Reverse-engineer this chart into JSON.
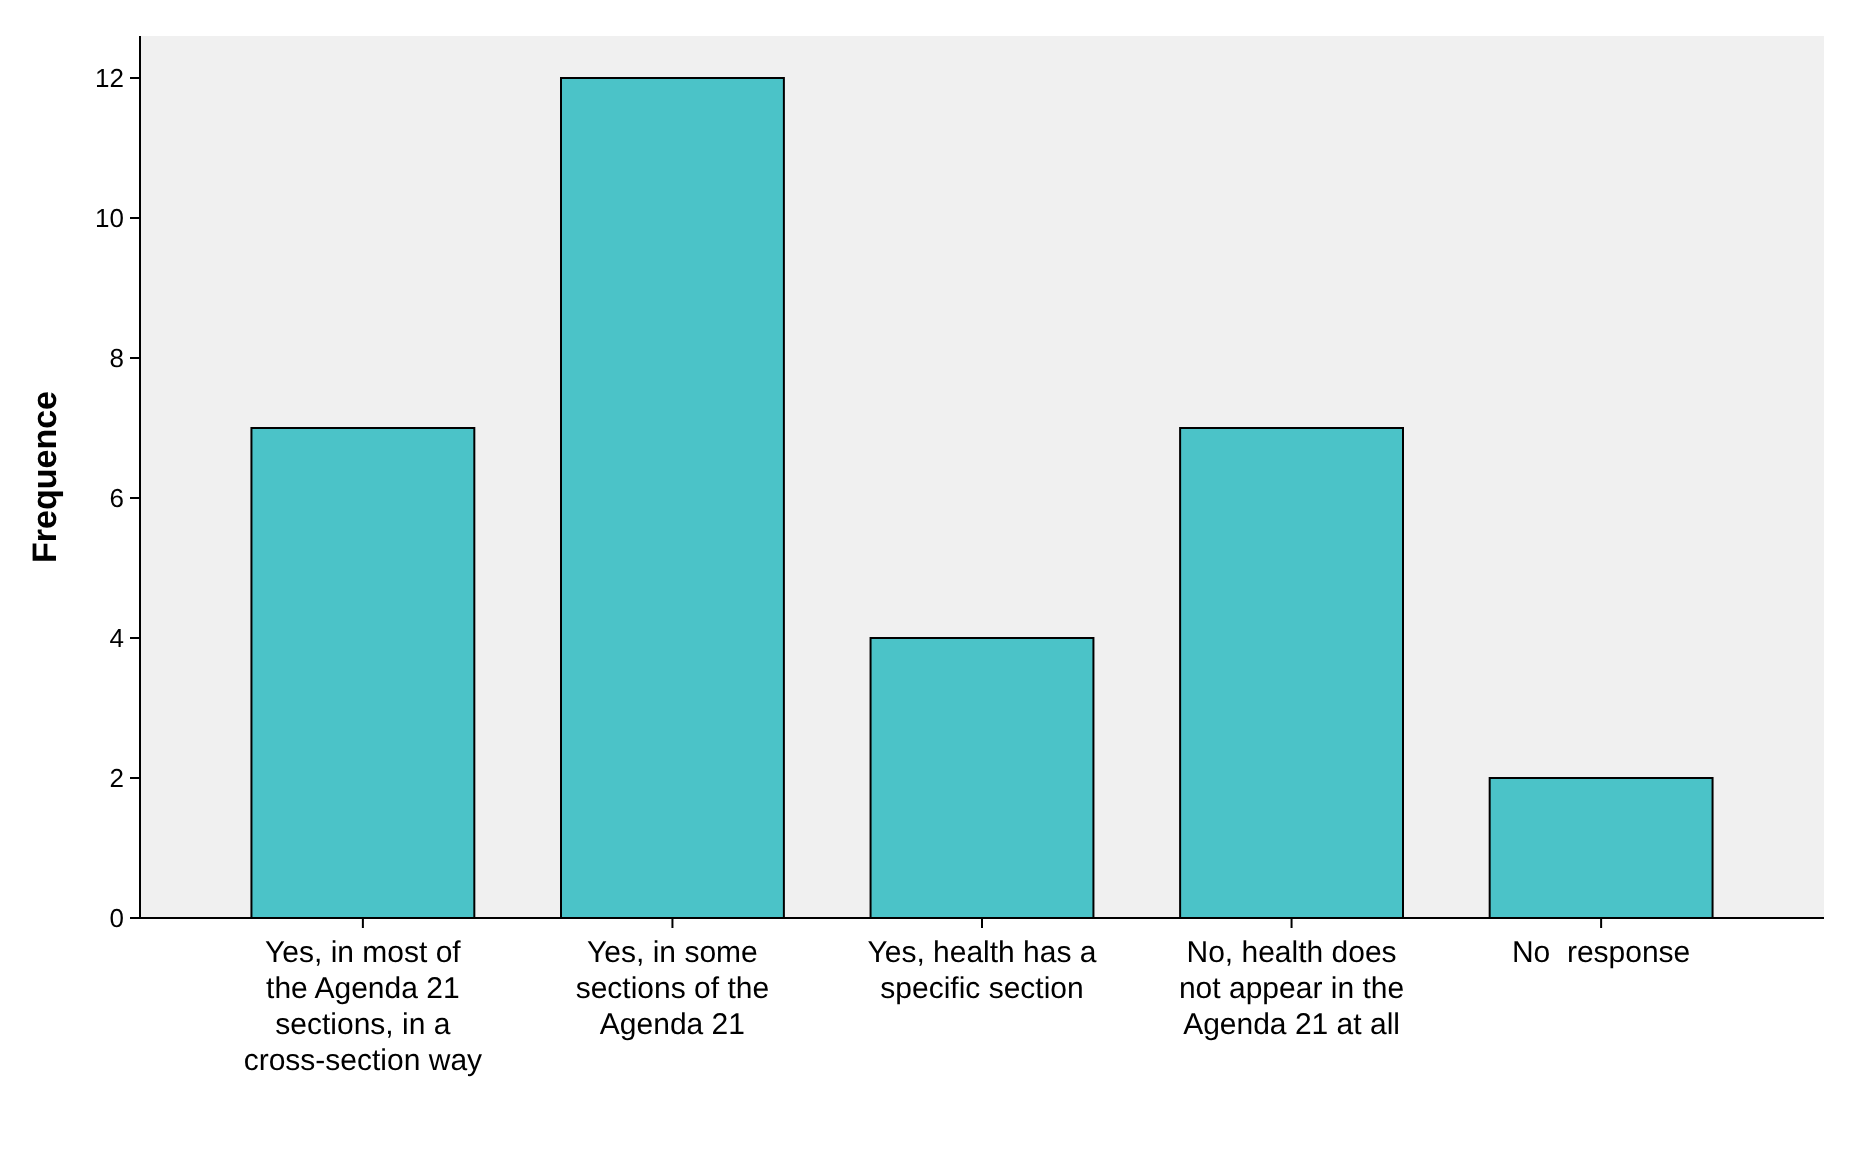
{
  "chart_data": {
    "type": "bar",
    "ylabel": "Frequence",
    "categories": [
      "Yes, in most of the Agenda 21 sections, in a cross-section way",
      "Yes, in some sections of the Agenda 21",
      "Yes, health has a specific section",
      "No, health does not appear in the Agenda 21 at all",
      "No  response"
    ],
    "values": [
      7,
      12,
      4,
      7,
      2
    ],
    "color": "#4bc3c8",
    "ylim": [
      0,
      12.6
    ],
    "yticks": [
      0,
      2,
      4,
      6,
      8,
      10,
      12
    ],
    "grid": false
  }
}
